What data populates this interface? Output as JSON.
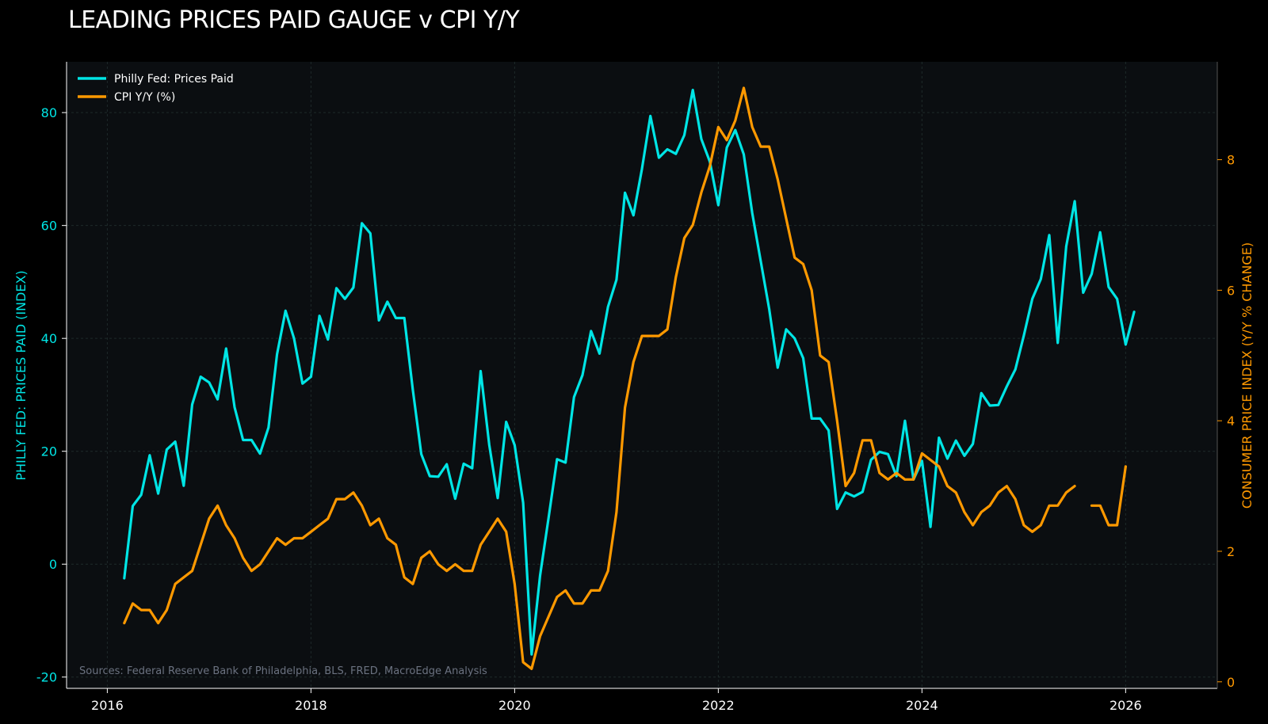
{
  "colors": {
    "background": "#000000",
    "plot_bg": "#0b0e11",
    "cyan": "#00e5e5",
    "orange": "#ff9900",
    "grid": "#1e2a2a",
    "axis": "#ffffff",
    "source": "#6b7280"
  },
  "chart_data": {
    "type": "line",
    "title": "LEADING PRICES PAID GAUGE v CPI Y/Y",
    "left_axis": {
      "label": "PHILLY FED: PRICES PAID (INDEX)",
      "ylim": [
        -22,
        89
      ],
      "ticks": [
        -20,
        0,
        20,
        40,
        60,
        80
      ],
      "color": "#00e5e5"
    },
    "right_axis": {
      "label": "CONSUMER PRICE INDEX (Y/Y % CHANGE)",
      "ylim": [
        -0.1,
        9.5
      ],
      "ticks": [
        0,
        2,
        4,
        6,
        8
      ],
      "color": "#ff9900"
    },
    "x_axis": {
      "xlim": [
        2015.6,
        2026.9
      ],
      "ticks": [
        2016,
        2018,
        2020,
        2022,
        2024,
        2026
      ],
      "tick_labels": [
        "2016",
        "2018",
        "2020",
        "2022",
        "2024",
        "2026"
      ]
    },
    "grid": true,
    "legend": {
      "position": "top-left",
      "entries": [
        "Philly Fed: Prices Paid",
        "CPI Y/Y (%)"
      ]
    },
    "source": "Sources: Federal Reserve Bank of Philadelphia, BLS, FRED, MacroEdge Analysis",
    "series": [
      {
        "name": "Philly Fed: Prices Paid",
        "axis": "left",
        "color": "#00e5e5",
        "start": "2016-03",
        "values": [
          -2.5,
          10.3,
          12.3,
          19.3,
          12.5,
          20.3,
          21.7,
          13.9,
          28.3,
          33.2,
          32.2,
          29.2,
          38.2,
          27.8,
          22,
          22,
          19.6,
          24.2,
          37.2,
          44.9,
          40,
          32,
          33.2,
          44,
          39.8,
          48.9,
          47,
          49,
          60.4,
          58.6,
          43.2,
          46.5,
          43.6,
          43.6,
          30.9,
          19.5,
          15.6,
          15.5,
          17.7,
          11.6,
          17.8,
          17,
          34.2,
          21.2,
          11.7,
          25.2,
          21.1,
          10.9,
          -16,
          -2,
          8.2,
          18.6,
          18,
          29.6,
          33.5,
          41.3,
          37.3,
          45.6,
          50.4,
          65.8,
          61.8,
          70,
          79.4,
          72,
          73.5,
          72.7,
          76,
          84,
          75.3,
          71.3,
          63.6,
          73.8,
          76.9,
          72.6,
          62.2,
          53.7,
          45.2,
          34.8,
          41.6,
          40,
          36.5,
          25.8,
          25.8,
          23.7,
          9.8,
          12.7,
          12,
          12.8,
          18.5,
          19.9,
          19.5,
          15.6,
          25.4,
          15,
          18.3,
          6.6,
          22.4,
          18.7,
          21.9,
          19.2,
          21.3,
          30.3,
          28.1,
          28.2,
          31.5,
          34.5,
          40.5,
          47,
          50.5,
          58.3,
          39.2,
          56.3,
          64.3,
          48.1,
          51.4,
          58.8,
          49.1,
          47,
          38.9,
          44.7
        ]
      },
      {
        "name": "CPI Y/Y (%)",
        "axis": "right",
        "color": "#ff9900",
        "start": "2016-03",
        "values": [
          0.9,
          1.2,
          1.1,
          1.1,
          0.9,
          1.1,
          1.5,
          1.6,
          1.7,
          2.1,
          2.5,
          2.7,
          2.4,
          2.2,
          1.9,
          1.7,
          1.8,
          2,
          2.2,
          2.1,
          2.2,
          2.2,
          2.3,
          2.4,
          2.5,
          2.8,
          2.8,
          2.9,
          2.7,
          2.4,
          2.5,
          2.2,
          2.1,
          1.6,
          1.5,
          1.9,
          2,
          1.8,
          1.7,
          1.8,
          1.7,
          1.7,
          2.1,
          2.3,
          2.5,
          2.3,
          1.5,
          0.3,
          0.2,
          0.7,
          1,
          1.3,
          1.4,
          1.2,
          1.2,
          1.4,
          1.4,
          1.7,
          2.6,
          4.2,
          4.9,
          5.3,
          5.3,
          5.3,
          5.4,
          6.2,
          6.8,
          7,
          7.5,
          7.9,
          8.5,
          8.3,
          8.6,
          9.1,
          8.5,
          8.2,
          8.2,
          7.7,
          7.1,
          6.5,
          6.4,
          6,
          5,
          4.9,
          4,
          3,
          3.2,
          3.7,
          3.7,
          3.2,
          3.1,
          3.2,
          3.1,
          3.1,
          3.5,
          3.4,
          3.3,
          3,
          2.9,
          2.6,
          2.4,
          2.6,
          2.7,
          2.9,
          3,
          2.8,
          2.4,
          2.3,
          2.4,
          2.7,
          2.7,
          2.9,
          3,
          null,
          2.7,
          2.7,
          2.4,
          2.4,
          3.3
        ]
      }
    ]
  }
}
